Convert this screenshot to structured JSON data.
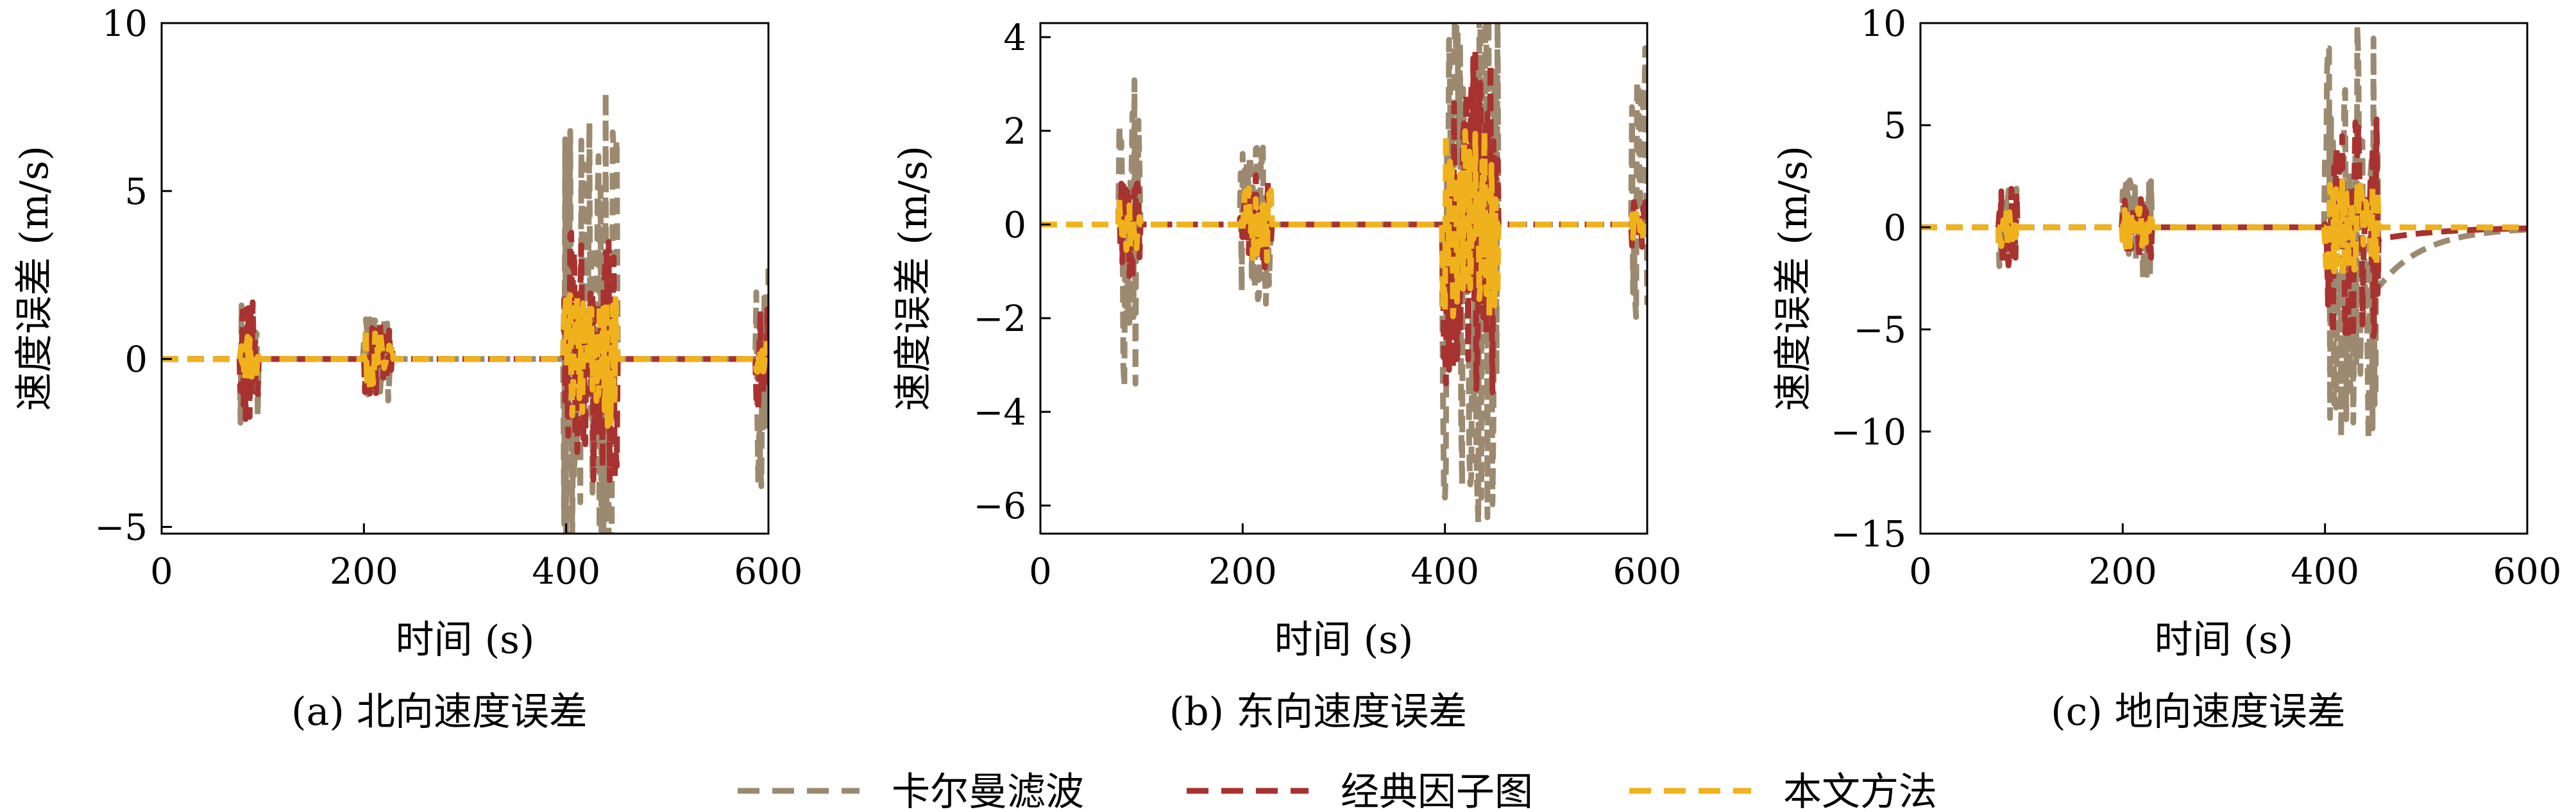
{
  "chart_data": [
    {
      "type": "line",
      "caption": "(a) 北向速度误差",
      "xlabel": "时间 (s)",
      "ylabel": "速度误差 (m/s)",
      "xlim": [
        0,
        600
      ],
      "ylim": [
        -5.2,
        10
      ],
      "xticks": [
        0,
        200,
        400,
        600
      ],
      "yticks": [
        -5,
        0,
        5,
        10
      ],
      "xticklabels": [
        "0",
        "200",
        "400",
        "600"
      ],
      "yticklabels": [
        "−5",
        "0",
        "5",
        "10"
      ],
      "grid": false,
      "bursts": [
        {
          "t0": 78,
          "t1": 95,
          "amp": [
            1.9,
            1.8,
            0.7
          ]
        },
        {
          "t0": 200,
          "t1": 228,
          "amp": [
            1.4,
            1.1,
            0.9
          ]
        },
        {
          "t0": 398,
          "t1": 450,
          "amp": [
            8.0,
            3.8,
            2.0
          ]
        },
        {
          "t0": 588,
          "t1": 600,
          "amp": [
            3.8,
            1.5,
            0.5
          ]
        }
      ],
      "series": [
        {
          "name": "卡尔曼滤波",
          "color": "#9c8a70"
        },
        {
          "name": "经典因子图",
          "color": "#a8322f"
        },
        {
          "name": "本文方法",
          "color": "#f0b21c"
        }
      ]
    },
    {
      "type": "line",
      "caption": "(b) 东向速度误差",
      "xlabel": "时间 (s)",
      "ylabel": "速度误差 (m/s)",
      "xlim": [
        0,
        600
      ],
      "ylim": [
        -6.6,
        4.3
      ],
      "xticks": [
        0,
        200,
        400,
        600
      ],
      "yticks": [
        -6,
        -4,
        -2,
        0,
        2,
        4
      ],
      "xticklabels": [
        "0",
        "200",
        "400",
        "600"
      ],
      "yticklabels": [
        "−6",
        "−4",
        "−2",
        "0",
        "2",
        "4"
      ],
      "grid": false,
      "bursts": [
        {
          "t0": 78,
          "t1": 98,
          "amp": [
            3.8,
            1.2,
            0.6
          ]
        },
        {
          "t0": 198,
          "t1": 228,
          "amp": [
            1.8,
            1.2,
            0.8
          ]
        },
        {
          "t0": 398,
          "t1": 452,
          "amp": [
            6.4,
            3.8,
            2.0
          ]
        },
        {
          "t0": 585,
          "t1": 600,
          "amp": [
            4.0,
            0.5,
            0.3
          ]
        }
      ],
      "series": [
        {
          "name": "卡尔曼滤波",
          "color": "#9c8a70"
        },
        {
          "name": "经典因子图",
          "color": "#a8322f"
        },
        {
          "name": "本文方法",
          "color": "#f0b21c"
        }
      ]
    },
    {
      "type": "line",
      "caption": "(c) 地向速度误差",
      "xlabel": "时间 (s)",
      "ylabel": "速度误差 (m/s)",
      "xlim": [
        0,
        600
      ],
      "ylim": [
        -15,
        10
      ],
      "xticks": [
        0,
        200,
        400,
        600
      ],
      "yticks": [
        -15,
        -10,
        -5,
        0,
        5,
        10
      ],
      "xticklabels": [
        "0",
        "200",
        "400",
        "600"
      ],
      "yticklabels": [
        "−15",
        "−10",
        "−5",
        "0",
        "5",
        "10"
      ],
      "grid": false,
      "bursts": [
        {
          "t0": 78,
          "t1": 95,
          "amp": [
            2.5,
            2.0,
            1.0
          ]
        },
        {
          "t0": 200,
          "t1": 228,
          "amp": [
            2.5,
            1.5,
            1.0
          ]
        },
        {
          "t0": 400,
          "t1": 452,
          "amp": [
            10.5,
            5.5,
            2.5
          ]
        }
      ],
      "series": [
        {
          "name": "卡尔曼滤波",
          "color": "#9c8a70"
        },
        {
          "name": "经典因子图",
          "color": "#a8322f"
        },
        {
          "name": "本文方法",
          "color": "#f0b21c"
        }
      ]
    }
  ],
  "legend": {
    "placement": "bottom-center",
    "items": [
      {
        "label": "卡尔曼滤波",
        "color": "#9c8a70"
      },
      {
        "label": "经典因子图",
        "color": "#a8322f"
      },
      {
        "label": "本文方法",
        "color": "#f0b21c"
      }
    ]
  }
}
